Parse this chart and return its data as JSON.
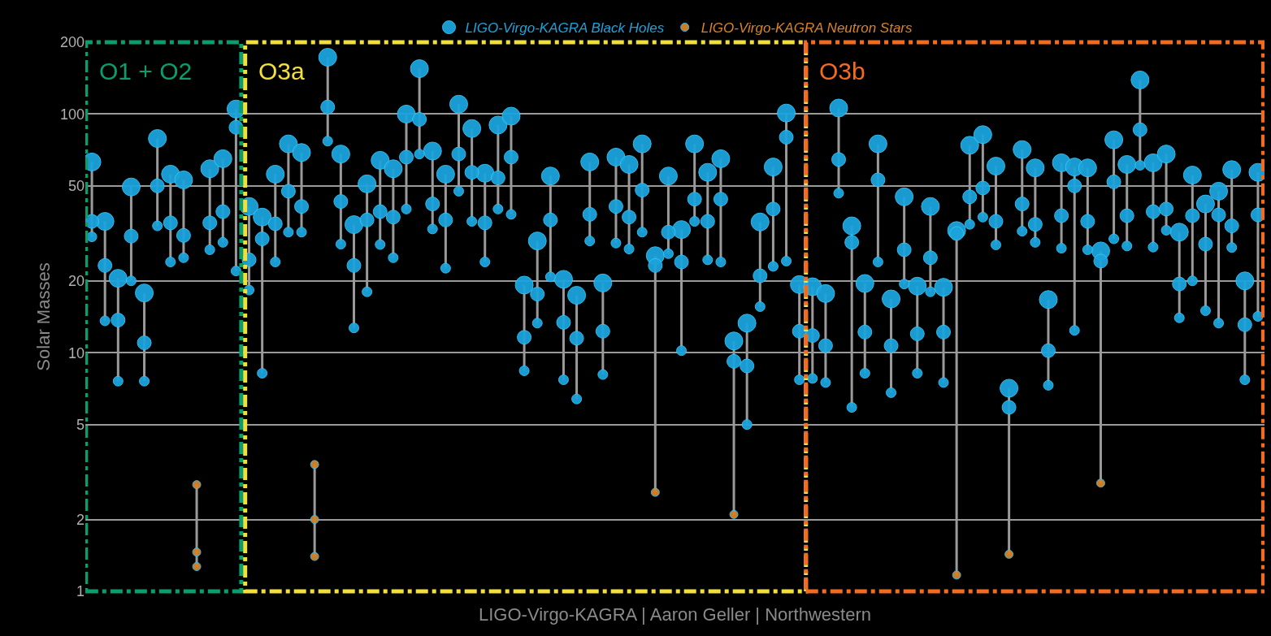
{
  "chart_data": {
    "type": "scatter",
    "ylabel": "Solar Masses",
    "log": true,
    "grid": "y",
    "legend": "top",
    "tick_labels": "y",
    "ylim": [
      1,
      200
    ],
    "yticks": [
      1,
      2,
      5,
      10,
      20,
      50,
      100,
      200
    ],
    "categories": [
      null,
      null,
      null,
      null,
      null,
      null,
      null,
      null,
      null,
      null,
      null,
      null,
      null,
      null,
      null,
      null,
      null,
      null,
      null,
      null,
      null,
      null,
      null,
      null,
      null,
      null,
      null,
      null,
      null,
      null,
      null,
      null,
      null,
      null,
      null,
      null,
      null,
      null,
      null,
      null,
      null,
      null,
      null,
      null,
      null,
      null,
      null,
      null,
      null,
      null,
      null,
      null,
      null,
      null,
      null,
      null,
      null,
      null,
      null,
      null,
      null,
      null,
      null,
      null,
      null,
      null,
      null,
      null,
      null,
      null,
      null,
      null,
      null,
      null,
      null,
      null,
      null,
      null,
      null,
      null,
      null,
      null,
      null,
      null,
      null,
      null,
      null,
      null,
      null,
      null
    ],
    "annotations": [
      "O1 + O2",
      "O3a",
      "O3b",
      "LIGO-Virgo-KAGRA | Aaron Geller | Northwestern"
    ],
    "series": [
      {
        "name": "LIGO-Virgo-KAGRA Black Holes",
        "color": "#1ba3dc",
        "values": [
          63,
          35.5,
          20.5,
          49.5,
          17.8,
          79,
          56,
          53,
          null,
          59,
          65,
          105,
          41,
          37,
          56,
          75,
          69,
          null,
          173,
          68,
          34.4,
          51,
          64,
          59,
          100,
          155,
          70,
          56,
          110,
          87,
          56.5,
          90,
          98,
          19.2,
          29.4,
          55,
          20.3,
          17.4,
          63,
          19.6,
          66,
          61.5,
          75,
          25.5,
          55,
          32.8,
          75,
          57,
          65,
          11.2,
          13.3,
          35.3,
          60,
          101,
          19.3,
          18.9,
          17.7,
          106,
          34,
          19.5,
          75,
          16.8,
          45,
          19,
          41,
          18.8,
          32.5,
          74,
          82,
          60.5,
          7.1,
          71,
          59.5,
          16.7,
          62.5,
          60,
          59.5,
          26.7,
          78,
          61.5,
          139,
          62.5,
          68,
          32,
          55.5,
          42,
          47.5,
          58.5,
          20,
          57
        ]
      },
      {
        "color": "#1ba3dc",
        "values": [
          35.5,
          23.2,
          13.7,
          30.8,
          11,
          50,
          35,
          31,
          null,
          35,
          39,
          88,
          24.5,
          30,
          34.7,
          47.5,
          41,
          null,
          107,
          43,
          23.2,
          36,
          39,
          37,
          66,
          95,
          42,
          36,
          68,
          57,
          35,
          54,
          66,
          11.6,
          17.6,
          36,
          13.4,
          11.5,
          38,
          12.3,
          41,
          37,
          48,
          23.2,
          32,
          24,
          44,
          35.5,
          44,
          9.2,
          8.8,
          21,
          40,
          80,
          12.3,
          11.8,
          10.7,
          64.5,
          29,
          12.2,
          53,
          10.7,
          27,
          12,
          25,
          12.2,
          31.6,
          45,
          49,
          35.5,
          5.9,
          42,
          34.5,
          10.2,
          37.5,
          50,
          35.5,
          24.2,
          52,
          37.5,
          86,
          39,
          40,
          19.4,
          37.5,
          28.5,
          37.8,
          34,
          13.1,
          37.8
        ]
      },
      {
        "color": "#1ba3dc",
        "values": [
          30.6,
          13.6,
          7.6,
          20,
          7.6,
          34,
          24,
          25,
          null,
          27,
          29,
          22,
          18.3,
          8.2,
          24,
          32,
          32,
          null,
          77,
          28.5,
          12.7,
          18,
          28.4,
          25,
          40,
          68,
          33,
          22.6,
          47.5,
          35.5,
          24,
          40,
          38,
          8.4,
          13.3,
          20.8,
          7.7,
          6.4,
          29.4,
          8.1,
          28.8,
          27.2,
          32,
          null,
          26,
          10.2,
          35.5,
          24.5,
          24,
          null,
          5,
          15.6,
          23,
          24.2,
          7.7,
          7.8,
          7.5,
          46.6,
          5.9,
          8.2,
          24,
          6.8,
          19.4,
          8.2,
          18,
          7.5,
          null,
          34.5,
          37,
          28.3,
          null,
          32.3,
          29,
          7.3,
          27.4,
          12.4,
          27,
          null,
          30,
          28,
          61,
          27.7,
          32.6,
          14,
          20,
          15,
          13.3,
          27.6,
          7.7,
          14.2
        ]
      },
      {
        "name": "LIGO-Virgo-KAGRA Neutron Stars",
        "color": "#d98226",
        "values": [
          null,
          null,
          null,
          null,
          null,
          null,
          null,
          null,
          2.8,
          null,
          null,
          null,
          null,
          null,
          null,
          null,
          null,
          3.4,
          null,
          null,
          null,
          null,
          null,
          null,
          null,
          null,
          null,
          null,
          null,
          null,
          null,
          null,
          null,
          null,
          null,
          null,
          null,
          null,
          null,
          null,
          null,
          null,
          null,
          null,
          null,
          null,
          null,
          null,
          null,
          null,
          null,
          null,
          null,
          null,
          null,
          null,
          null,
          null,
          null,
          null,
          null,
          null,
          null,
          null,
          null,
          null,
          null,
          null,
          null,
          null,
          null,
          null,
          null,
          null,
          null,
          null,
          null,
          null,
          null,
          null,
          null,
          null,
          null,
          null,
          null,
          null,
          null,
          null,
          null,
          null
        ]
      },
      {
        "color": "#d98226",
        "values": [
          null,
          null,
          null,
          null,
          null,
          null,
          null,
          null,
          1.46,
          null,
          null,
          null,
          null,
          null,
          null,
          null,
          null,
          2,
          null,
          null,
          null,
          null,
          null,
          null,
          null,
          null,
          null,
          null,
          null,
          null,
          null,
          null,
          null,
          null,
          null,
          null,
          null,
          null,
          null,
          null,
          null,
          null,
          null,
          null,
          null,
          null,
          null,
          null,
          null,
          null,
          null,
          null,
          null,
          null,
          null,
          null,
          null,
          null,
          null,
          null,
          null,
          null,
          null,
          null,
          null,
          null,
          null,
          null,
          null,
          null,
          null,
          null,
          null,
          null,
          null,
          null,
          null,
          null,
          null,
          null,
          null,
          null,
          null,
          null,
          null,
          null,
          null,
          null,
          null,
          null
        ]
      },
      {
        "color": "#d98226",
        "values": [
          null,
          null,
          null,
          null,
          null,
          null,
          null,
          null,
          1.27,
          null,
          null,
          null,
          null,
          null,
          null,
          null,
          null,
          1.4,
          null,
          null,
          null,
          null,
          null,
          null,
          null,
          null,
          null,
          null,
          null,
          null,
          null,
          null,
          null,
          null,
          null,
          null,
          null,
          null,
          null,
          null,
          null,
          null,
          null,
          2.6,
          null,
          null,
          null,
          null,
          null,
          2.1,
          null,
          null,
          null,
          null,
          null,
          null,
          null,
          null,
          null,
          null,
          null,
          null,
          null,
          null,
          null,
          null,
          1.17,
          null,
          null,
          null,
          1.43,
          null,
          null,
          null,
          null,
          null,
          null,
          2.84,
          null,
          null,
          null,
          null,
          null,
          null,
          null,
          null,
          null,
          null,
          null,
          null
        ]
      }
    ]
  }
}
